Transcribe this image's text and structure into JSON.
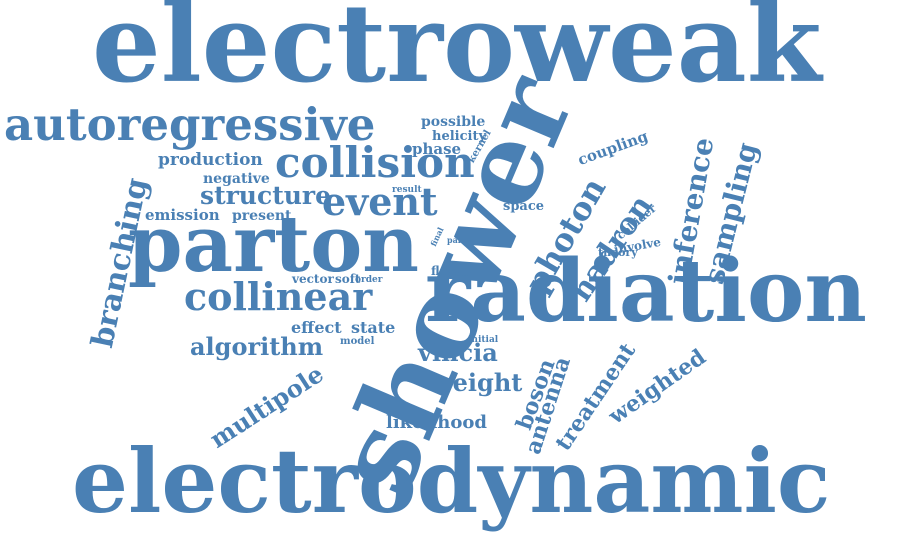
{
  "color": "#4a80b4",
  "words": [
    {
      "text": "electroweak",
      "name": "word-electroweak"
    },
    {
      "text": "electrodynamic",
      "name": "word-electrodynamic"
    },
    {
      "text": "shower",
      "name": "word-shower"
    },
    {
      "text": "radiation",
      "name": "word-radiation"
    },
    {
      "text": "parton",
      "name": "word-parton"
    },
    {
      "text": "autoregressive",
      "name": "word-autoregressive"
    },
    {
      "text": "collision",
      "name": "word-collision"
    },
    {
      "text": "collinear",
      "name": "word-collinear"
    },
    {
      "text": "event",
      "name": "word-event"
    },
    {
      "text": "branching",
      "name": "word-branching"
    },
    {
      "text": "photon",
      "name": "word-photon"
    },
    {
      "text": "hadron",
      "name": "word-hadron"
    },
    {
      "text": "inference",
      "name": "word-inference"
    },
    {
      "text": "sampling",
      "name": "word-sampling"
    },
    {
      "text": "structure",
      "name": "word-structure"
    },
    {
      "text": "algorithm",
      "name": "word-algorithm"
    },
    {
      "text": "multipole",
      "name": "word-multipole"
    },
    {
      "text": "vincia",
      "name": "word-vincia"
    },
    {
      "text": "weight",
      "name": "word-weight"
    },
    {
      "text": "boson",
      "name": "word-boson"
    },
    {
      "text": "antenna",
      "name": "word-antenna"
    },
    {
      "text": "treatment",
      "name": "word-treatment"
    },
    {
      "text": "weighted",
      "name": "word-weighted"
    },
    {
      "text": "likelihood",
      "name": "word-likelihood"
    },
    {
      "text": "production",
      "name": "word-production"
    },
    {
      "text": "negative",
      "name": "word-negative"
    },
    {
      "text": "emission",
      "name": "word-emission"
    },
    {
      "text": "present",
      "name": "word-present"
    },
    {
      "text": "possible",
      "name": "word-possible"
    },
    {
      "text": "helicity",
      "name": "word-helicity"
    },
    {
      "text": "phase",
      "name": "word-phase"
    },
    {
      "text": "kernel",
      "name": "word-kernel"
    },
    {
      "text": "coupling",
      "name": "word-coupling"
    },
    {
      "text": "space",
      "name": "word-space"
    },
    {
      "text": "result",
      "name": "word-result"
    },
    {
      "text": "effect",
      "name": "word-effect"
    },
    {
      "text": "state",
      "name": "word-state"
    },
    {
      "text": "model",
      "name": "word-model"
    },
    {
      "text": "vector",
      "name": "word-vector"
    },
    {
      "text": "soft",
      "name": "word-soft"
    },
    {
      "text": "order",
      "name": "word-order"
    },
    {
      "text": "flow",
      "name": "word-flow"
    },
    {
      "text": "spin",
      "name": "word-spin"
    },
    {
      "text": "final",
      "name": "word-final"
    },
    {
      "text": "pair",
      "name": "word-pair"
    },
    {
      "text": "initial",
      "name": "word-initial"
    },
    {
      "text": "collider",
      "name": "word-collider"
    },
    {
      "text": "involve",
      "name": "word-involve"
    },
    {
      "text": "theory",
      "name": "word-theory"
    }
  ]
}
